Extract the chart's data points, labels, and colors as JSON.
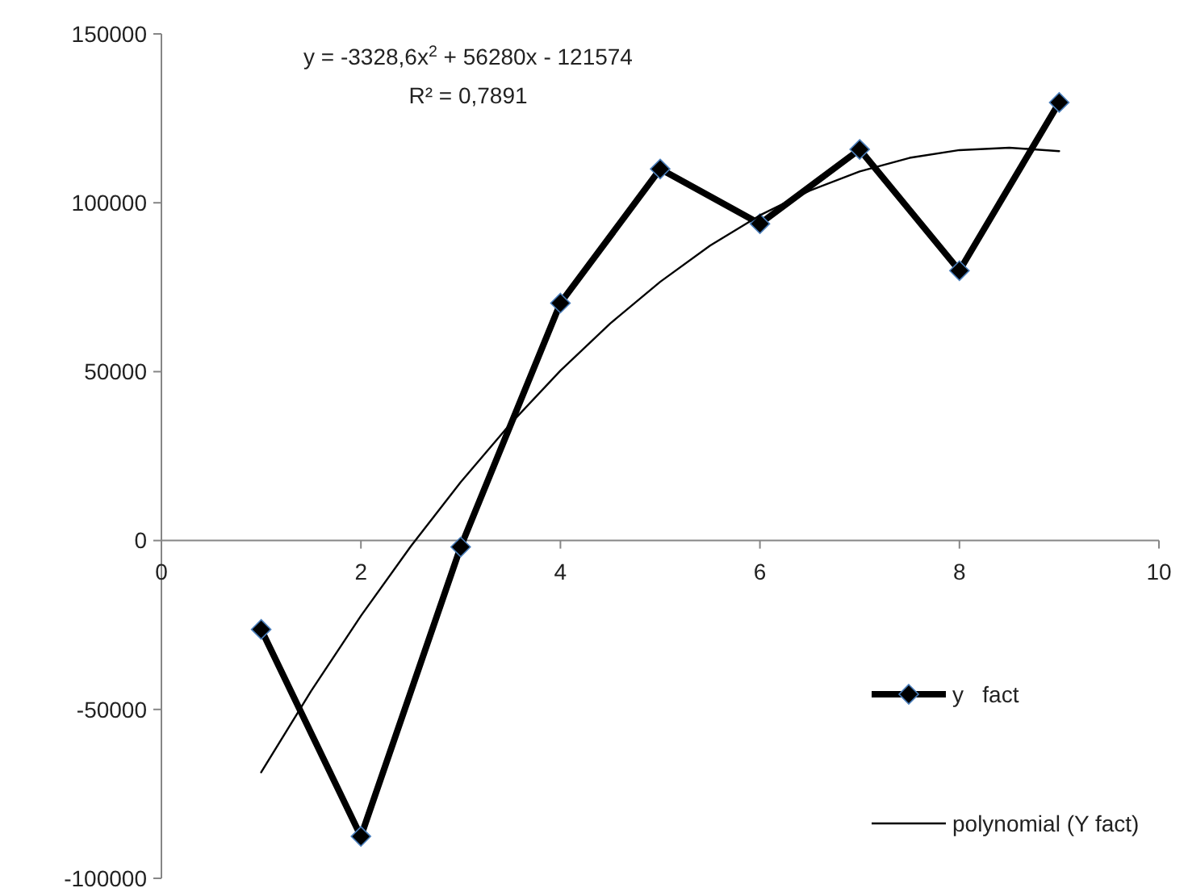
{
  "chart_data": {
    "type": "line",
    "xlim": [
      0,
      10
    ],
    "xticks": [
      0,
      2,
      4,
      6,
      8,
      10
    ],
    "ylim": [
      -100000,
      150000
    ],
    "yticks": [
      -100000,
      -50000,
      0,
      50000,
      100000,
      150000
    ],
    "grid": false,
    "legend": "bottom right",
    "series": [
      {
        "name": "y   fact",
        "color": "#000000",
        "marker": "diamond",
        "x": [
          1,
          2,
          3,
          4,
          5,
          6,
          7,
          8,
          9
        ],
        "values": [
          -26300,
          -87600,
          -1900,
          70300,
          110000,
          93800,
          115800,
          79900,
          129700
        ]
      },
      {
        "name": "polynomial (Y fact)",
        "color": "#000000",
        "marker": "none",
        "x": [
          1,
          1.5,
          2,
          2.5,
          3,
          3.5,
          4,
          4.5,
          5,
          5.5,
          6,
          6.5,
          7,
          7.5,
          8,
          8.5,
          9
        ],
        "values": [
          -68600,
          -44600,
          -22300,
          -1700,
          17300,
          34600,
          50300,
          64300,
          76600,
          87300,
          96300,
          103600,
          109300,
          113300,
          115600,
          116300,
          115300
        ]
      }
    ],
    "annotations": [
      "y = -3328,6x$^{2}$ + 56280x - 121574",
      "R² = 0,7891"
    ]
  }
}
